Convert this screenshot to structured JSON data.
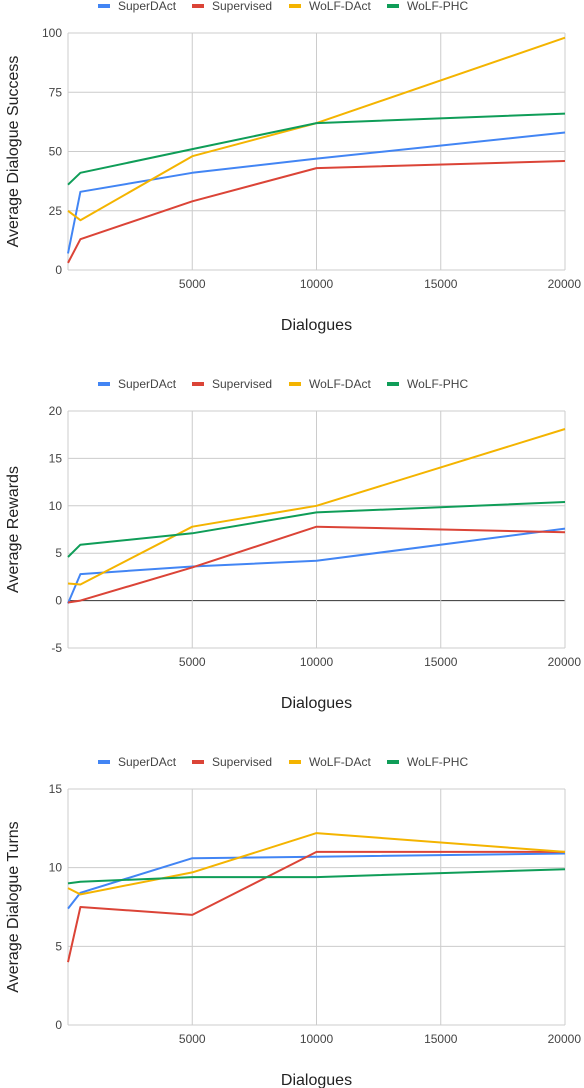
{
  "colors": {
    "SuperDAct": "#4285f4",
    "Supervised": "#db4437",
    "WoLF-DAct": "#f4b400",
    "WoLF-PHC": "#0f9d58",
    "grid": "#cccccc",
    "zero_line": "#333333"
  },
  "chart_data": [
    {
      "type": "line",
      "ylabel": "Average Dialogue Success",
      "xlabel": "Dialogues",
      "legend_position": "top",
      "grid": true,
      "xlim": [
        0,
        20000
      ],
      "ylim": [
        0,
        100
      ],
      "x_ticks": [
        5000,
        10000,
        15000,
        20000
      ],
      "y_ticks": [
        0,
        25,
        50,
        75,
        100
      ],
      "series": [
        {
          "name": "SuperDAct",
          "color_key": "SuperDAct",
          "x": [
            0,
            500,
            5000,
            10000,
            20000
          ],
          "y": [
            7,
            33,
            41,
            47,
            58
          ]
        },
        {
          "name": "Supervised",
          "color_key": "Supervised",
          "x": [
            0,
            500,
            5000,
            10000,
            20000
          ],
          "y": [
            3,
            13,
            29,
            43,
            46
          ]
        },
        {
          "name": "WoLF-DAct",
          "color_key": "WoLF-DAct",
          "x": [
            0,
            500,
            5000,
            10000,
            20000
          ],
          "y": [
            25,
            21,
            48,
            62,
            98
          ]
        },
        {
          "name": "WoLF-PHC",
          "color_key": "WoLF-PHC",
          "x": [
            0,
            500,
            5000,
            10000,
            20000
          ],
          "y": [
            36,
            41,
            51,
            62,
            66
          ]
        }
      ]
    },
    {
      "type": "line",
      "ylabel": "Average Rewards",
      "xlabel": "Dialogues",
      "legend_position": "top",
      "grid": true,
      "zero_line": true,
      "xlim": [
        0,
        20000
      ],
      "ylim": [
        -5,
        20
      ],
      "x_ticks": [
        5000,
        10000,
        15000,
        20000
      ],
      "y_ticks": [
        -5,
        0,
        5,
        10,
        15,
        20
      ],
      "series": [
        {
          "name": "SuperDAct",
          "color_key": "SuperDAct",
          "x": [
            0,
            500,
            5000,
            10000,
            20000
          ],
          "y": [
            -0.3,
            2.8,
            3.6,
            4.2,
            7.6
          ]
        },
        {
          "name": "Supervised",
          "color_key": "Supervised",
          "x": [
            0,
            500,
            5000,
            10000,
            20000
          ],
          "y": [
            -0.2,
            0,
            3.5,
            7.8,
            7.2
          ]
        },
        {
          "name": "WoLF-DAct",
          "color_key": "WoLF-DAct",
          "x": [
            0,
            500,
            5000,
            10000,
            20000
          ],
          "y": [
            1.8,
            1.7,
            7.8,
            10.0,
            18.1
          ]
        },
        {
          "name": "WoLF-PHC",
          "color_key": "WoLF-PHC",
          "x": [
            0,
            500,
            5000,
            10000,
            20000
          ],
          "y": [
            4.6,
            5.9,
            7.1,
            9.3,
            10.4
          ]
        }
      ]
    },
    {
      "type": "line",
      "ylabel": "Average Dialogue Turns",
      "xlabel": "Dialogues",
      "legend_position": "top",
      "grid": true,
      "xlim": [
        0,
        20000
      ],
      "ylim": [
        0,
        15
      ],
      "x_ticks": [
        5000,
        10000,
        15000,
        20000
      ],
      "y_ticks": [
        0,
        5,
        10,
        15
      ],
      "series": [
        {
          "name": "SuperDAct",
          "color_key": "SuperDAct",
          "x": [
            0,
            500,
            5000,
            10000,
            20000
          ],
          "y": [
            7.4,
            8.4,
            10.6,
            10.7,
            10.9
          ]
        },
        {
          "name": "Supervised",
          "color_key": "Supervised",
          "x": [
            0,
            500,
            5000,
            10000,
            20000
          ],
          "y": [
            4.0,
            7.5,
            7.0,
            11.0,
            11.0
          ]
        },
        {
          "name": "WoLF-DAct",
          "color_key": "WoLF-DAct",
          "x": [
            0,
            500,
            5000,
            10000,
            20000
          ],
          "y": [
            8.7,
            8.3,
            9.7,
            12.2,
            11.0
          ]
        },
        {
          "name": "WoLF-PHC",
          "color_key": "WoLF-PHC",
          "x": [
            0,
            500,
            5000,
            10000,
            20000
          ],
          "y": [
            9.0,
            9.1,
            9.4,
            9.4,
            9.9
          ]
        }
      ]
    }
  ]
}
